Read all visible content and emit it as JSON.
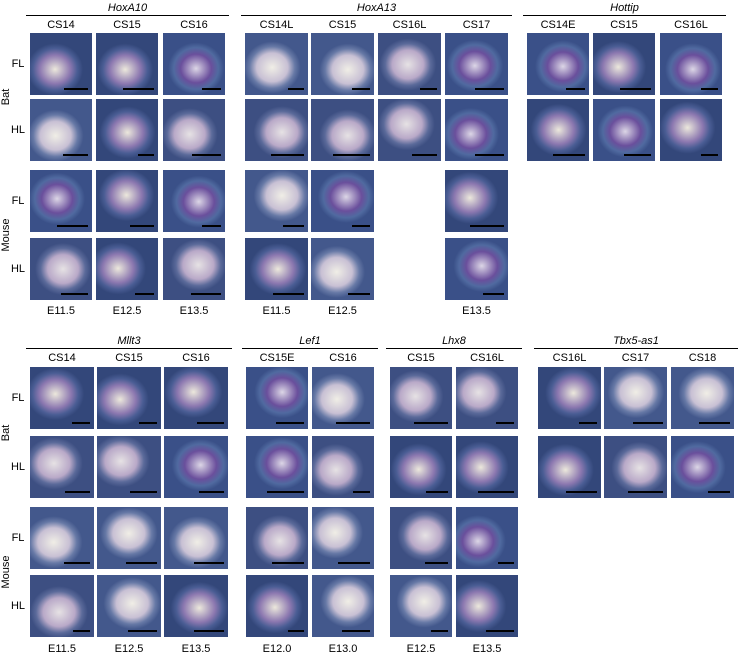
{
  "figure": {
    "blocks": [
      {
        "limb_labels": [
          "FL",
          "HL",
          "FL",
          "HL"
        ],
        "bat_label": "Bat",
        "mouse_label": "Mouse",
        "genes": [
          {
            "name": "HoxA10",
            "stages": [
              "CS14",
              "CS15",
              "CS16"
            ],
            "mouse_stages": [
              "E11.5",
              "E12.5",
              "E13.5"
            ]
          },
          {
            "name": "HoxA13",
            "stages": [
              "CS14L",
              "CS15",
              "CS16L",
              "CS17"
            ],
            "mouse_stages": [
              "E11.5",
              "E12.5",
              null,
              "E13.5"
            ]
          },
          {
            "name": "Hottip",
            "stages": [
              "CS14E",
              "CS15",
              "CS16L"
            ],
            "mouse_stages": null
          }
        ]
      },
      {
        "limb_labels": [
          "FL",
          "HL",
          "FL",
          "HL"
        ],
        "bat_label": "Bat",
        "mouse_label": "Mouse",
        "genes": [
          {
            "name": "Mllt3",
            "stages": [
              "CS14",
              "CS15",
              "CS16"
            ],
            "mouse_stages": [
              "E11.5",
              "E12.5",
              "E13.5"
            ]
          },
          {
            "name": "Lef1",
            "stages": [
              "CS15E",
              "CS16"
            ],
            "mouse_stages": [
              "E12.0",
              "E13.0"
            ]
          },
          {
            "name": "Lhx8",
            "stages": [
              "CS15",
              "CS16L"
            ],
            "mouse_stages": [
              "E12.5",
              "E13.5"
            ]
          },
          {
            "name": "Tbx5-as1",
            "stages": [
              "CS16L",
              "CS17",
              "CS18"
            ],
            "mouse_stages": null
          }
        ]
      }
    ]
  }
}
